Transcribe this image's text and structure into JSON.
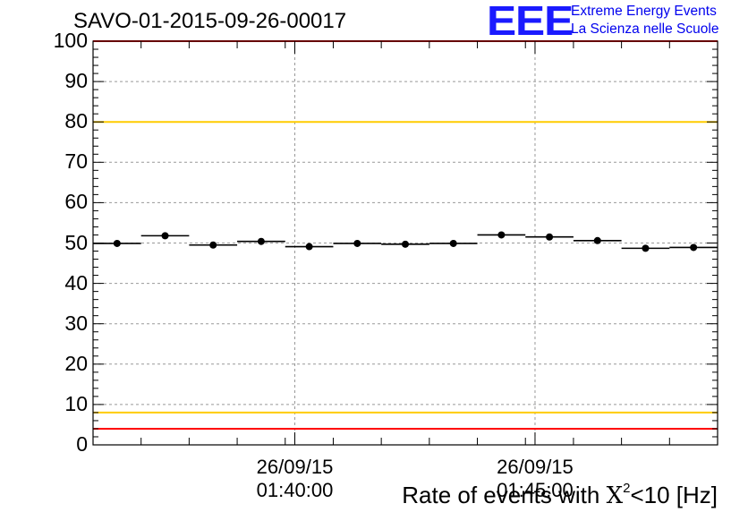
{
  "chart_data": {
    "type": "scatter",
    "title": "SAVO-01-2015-09-26-00017",
    "ylabel": "Rate of events with X²<10 [Hz]",
    "ylabel_parts": {
      "pre": "Rate of events with ",
      "chi": "X",
      "sup": "2",
      "post": "<10 [Hz]"
    },
    "xlabel": "",
    "xlim_minutes": [
      0,
      13
    ],
    "ylim": [
      0,
      100
    ],
    "yticks": [
      "0",
      "10",
      "20",
      "30",
      "40",
      "50",
      "60",
      "70",
      "80",
      "90",
      "100"
    ],
    "xticks": [
      {
        "minute": 4.2,
        "date": "26/09/15",
        "time": "01:40:00"
      },
      {
        "minute": 9.2,
        "date": "26/09/15",
        "time": "01:45:00"
      }
    ],
    "grid": true,
    "series": [
      {
        "name": "rate",
        "bin_width_minutes": 1,
        "x_centers_minutes": [
          0.5,
          1.5,
          2.5,
          3.5,
          4.5,
          5.5,
          6.5,
          7.5,
          8.5,
          9.5,
          10.5,
          11.5,
          12.5
        ],
        "values": [
          49.9,
          51.8,
          49.5,
          50.4,
          49.1,
          49.9,
          49.7,
          49.9,
          52.0,
          51.5,
          50.6,
          48.7,
          48.9
        ]
      }
    ],
    "reference_lines": [
      {
        "name": "upper-red",
        "y": 100,
        "color": "#ff0000"
      },
      {
        "name": "upper-yellow",
        "y": 80,
        "color": "#ffcc00"
      },
      {
        "name": "lower-yellow",
        "y": 8,
        "color": "#ffcc00"
      },
      {
        "name": "lower-red",
        "y": 4,
        "color": "#ff0000"
      }
    ]
  },
  "logo": {
    "mark": "EEE",
    "line1": "Extreme Energy Events",
    "line2": "La Scienza nelle Scuole",
    "color": "#1a1aff"
  }
}
